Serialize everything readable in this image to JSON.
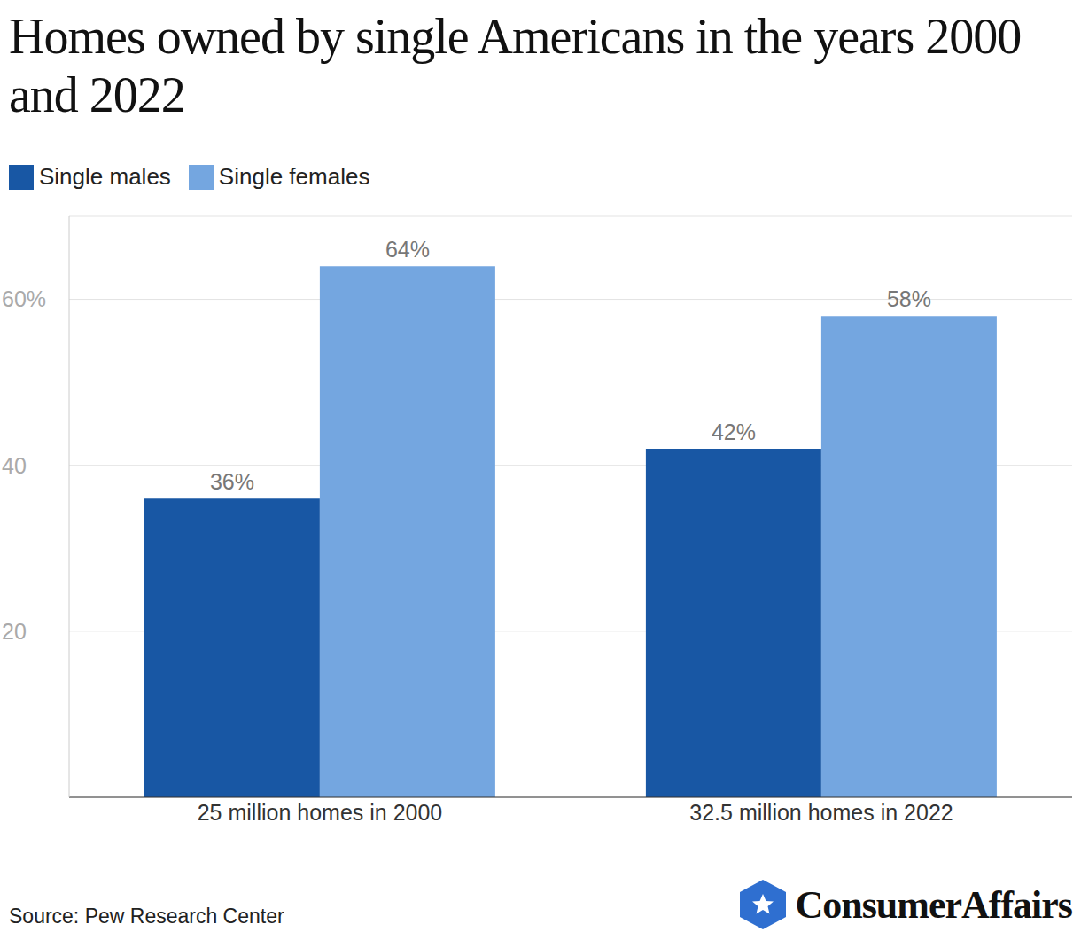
{
  "chart_data": {
    "type": "bar",
    "title": "Homes owned by single Americans in the years 2000 and 2022",
    "categories": [
      "25 million homes in 2000",
      "32.5 million homes in 2022"
    ],
    "series": [
      {
        "name": "Single males",
        "color": "#1857a4",
        "values": [
          36,
          42
        ],
        "value_labels": [
          "36%",
          "42%"
        ]
      },
      {
        "name": "Single females",
        "color": "#74a6e0",
        "values": [
          64,
          58
        ],
        "value_labels": [
          "64%",
          "58%"
        ]
      }
    ],
    "ylim": [
      0,
      70
    ],
    "yticks": [
      20,
      40,
      {
        "value": 60,
        "label": "60%"
      }
    ],
    "grid": true,
    "data_labels": true,
    "legend": "top-left",
    "source": "Source: Pew Research Center",
    "branding": "ConsumerAffairs"
  }
}
